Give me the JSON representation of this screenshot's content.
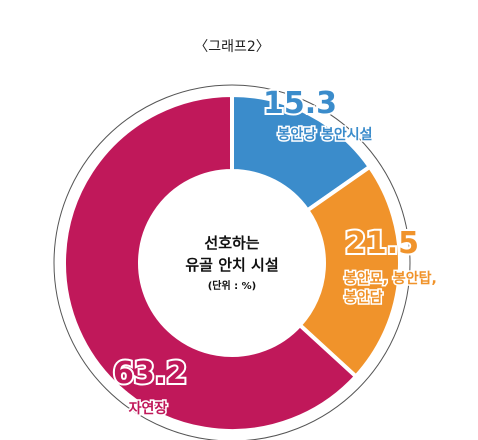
{
  "chart_data": {
    "type": "pie",
    "title": "〈그래프2〉",
    "center_text": [
      "선호하는",
      "유골 안치 시설"
    ],
    "unit_text": "(단위 : %)",
    "categories": [
      "봉안당 봉안시설",
      "봉안묘, 봉안탑, 봉안담",
      "자연장"
    ],
    "values": [
      15.3,
      21.5,
      63.2
    ],
    "value_labels": [
      "15.3",
      "21.5",
      "63.2"
    ],
    "category_labels": [
      [
        "봉안당 봉안시설"
      ],
      [
        "봉안묘, 봉안탑,",
        "봉안담"
      ],
      [
        "자연장"
      ]
    ],
    "colors": [
      "#3b8ccb",
      "#f0932b",
      "#c0185a"
    ],
    "donut": true,
    "legend": "none"
  }
}
